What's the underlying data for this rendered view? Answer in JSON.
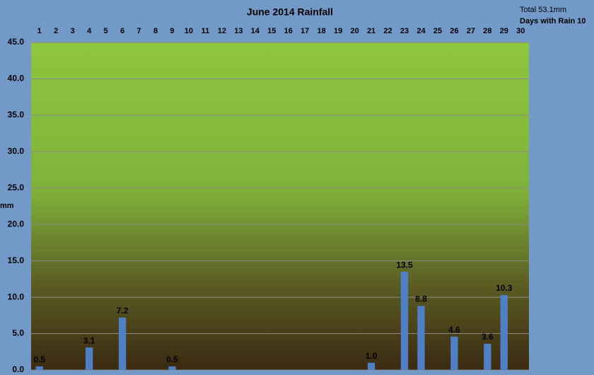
{
  "chart_data": {
    "type": "bar",
    "title": "June 2014 Rainfall",
    "annotations": [
      "Total 53.1mm",
      "Days with Rain 10"
    ],
    "y_label": "mm",
    "categories": [
      "1",
      "2",
      "3",
      "4",
      "5",
      "6",
      "7",
      "8",
      "9",
      "10",
      "11",
      "12",
      "13",
      "14",
      "15",
      "16",
      "17",
      "18",
      "19",
      "20",
      "21",
      "22",
      "23",
      "24",
      "25",
      "26",
      "27",
      "28",
      "29",
      "30"
    ],
    "values": [
      0.5,
      0,
      0,
      3.1,
      0,
      7.2,
      0,
      0,
      0.5,
      0,
      0,
      0,
      0,
      0,
      0,
      0,
      0,
      0,
      0,
      0,
      1,
      0,
      13.5,
      8.8,
      0,
      4.6,
      0,
      3.6,
      10.3,
      0
    ],
    "value_labels": [
      "0.5",
      null,
      null,
      "3.1",
      null,
      "7.2",
      null,
      null,
      "0.5",
      null,
      null,
      null,
      null,
      null,
      null,
      null,
      null,
      null,
      null,
      null,
      "1.0",
      null,
      "13.5",
      "8.8",
      null,
      "4.6",
      null,
      "3.6",
      "10.3",
      null
    ],
    "color": "#4f7fc4",
    "ylim": [
      0,
      45
    ],
    "yticks": [
      {
        "value": 0,
        "label": "0.0"
      },
      {
        "value": 5,
        "label": "5.0"
      },
      {
        "value": 10,
        "label": "10.0"
      },
      {
        "value": 15,
        "label": "15.0"
      },
      {
        "value": 20,
        "label": "20.0"
      },
      {
        "value": 25,
        "label": "25.0"
      },
      {
        "value": 30,
        "label": "30.0"
      },
      {
        "value": 35,
        "label": "35.0"
      },
      {
        "value": 40,
        "label": "40.0"
      },
      {
        "value": 45,
        "label": "45.0"
      }
    ],
    "grid": true
  }
}
